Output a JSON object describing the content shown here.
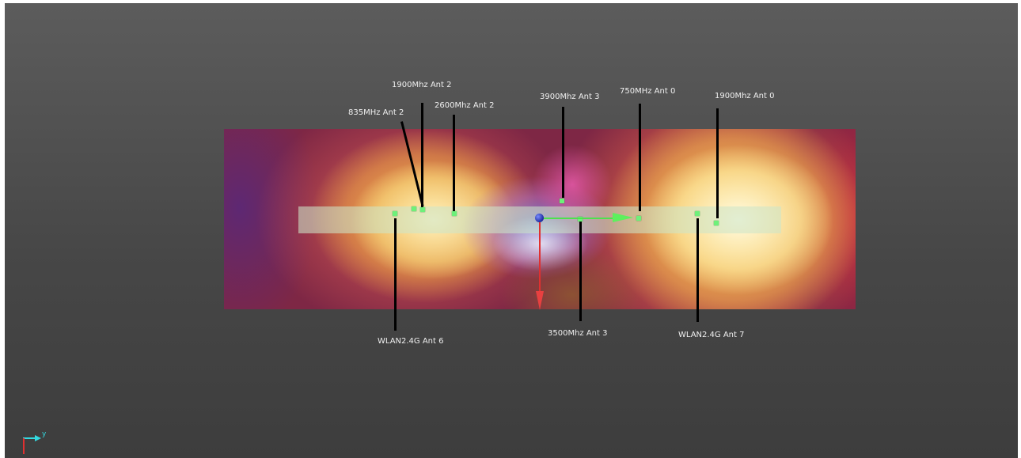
{
  "viewport": {
    "triad": {
      "y_axis_label": "y"
    }
  },
  "antennas": [
    {
      "id": "835-ant2",
      "label": "835MHz Ant 2"
    },
    {
      "id": "1900-ant2",
      "label": "1900Mhz Ant 2"
    },
    {
      "id": "2600-ant2",
      "label": "2600Mhz Ant 2"
    },
    {
      "id": "3900-ant3",
      "label": "3900Mhz Ant 3"
    },
    {
      "id": "750-ant0",
      "label": "750MHz Ant 0"
    },
    {
      "id": "1900-ant0",
      "label": "1900Mhz Ant 0"
    },
    {
      "id": "wlan-ant6",
      "label": "WLAN2.4G Ant 6"
    },
    {
      "id": "3500-ant3",
      "label": "3500Mhz Ant 3"
    },
    {
      "id": "wlan-ant7",
      "label": "WLAN2.4G Ant 7"
    }
  ],
  "colors": {
    "background_top": "#5c5c5c",
    "background_bottom": "#3d3d3d",
    "field_hot": "#fffbe6",
    "field_warm": "#f3c14a",
    "field_edge": "#c6314f",
    "field_cold": "#6e7fe0",
    "marker": "#6ef07a",
    "axis_x": "#4ee04e",
    "axis_y": "#33d9e0",
    "axis_z": "#e03030"
  }
}
